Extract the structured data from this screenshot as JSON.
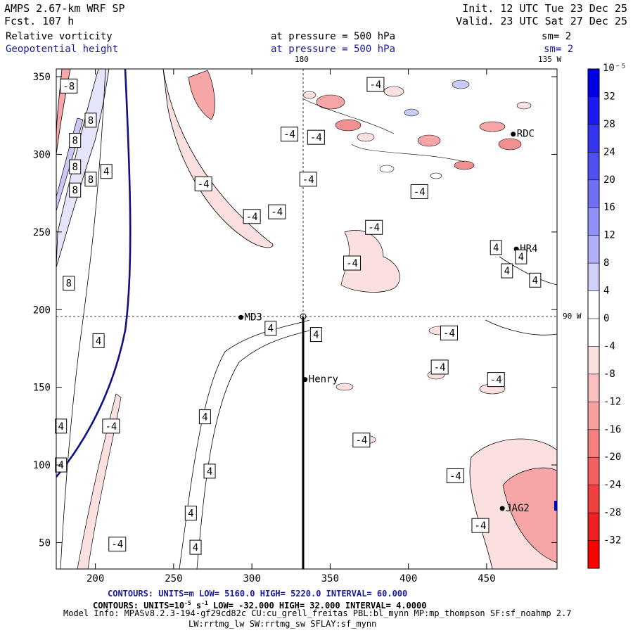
{
  "header": {
    "model": "AMPS 2.67-km WRF SP",
    "fcst": "Fcst.  107 h",
    "init": "Init. 12 UTC Tue 23 Dec 25",
    "valid": "Valid. 23 UTC Sat 27 Dec 25",
    "field1": "Relative vorticity",
    "field1_level": "at pressure =  500 hPa",
    "field1_sm": "sm= 2",
    "field2": "Geopotential height",
    "field2_level": "at pressure =  500 hPa",
    "field2_sm": "sm= 2",
    "top_label_180": "180",
    "top_label_135": "135 W",
    "right_label_90": "90 W"
  },
  "footer": {
    "line1": "CONTOURS:  UNITS=m  LOW=  5160.0      HIGH=  5220.0      INTERVAL=   60.000",
    "line2_a": "CONTOURS:  UNITS=10",
    "line2_sup": "-5",
    "line2_b": " s",
    "line2_sup2": "-1",
    "line2_c": "  LOW=  -32.000       HIGH=  32.000       INTERVAL=   4.0000",
    "line3": "Model Info: MPASv8.2.3-194-gf29cd82c CU:cu_grell_freitas PBL:bl_mynn MP:mp_thompson SF:sf_noahmp 2.7",
    "line4": "LW:rrtmg_lw SW:rrtmg_sw SFLAY:sf_mynn"
  },
  "chart_data": {
    "type": "contour",
    "title": "Relative vorticity / Geopotential height at 500 hPa",
    "xlim": [
      175,
      495
    ],
    "ylim": [
      33,
      355
    ],
    "xticks": [
      200,
      250,
      300,
      350,
      400,
      450
    ],
    "yticks": [
      50,
      100,
      150,
      200,
      250,
      300,
      350
    ],
    "colorbar": {
      "unit_label": "10⁻⁵ s⁻¹",
      "ticks": [
        32,
        28,
        24,
        20,
        16,
        12,
        8,
        4,
        0,
        -4,
        -8,
        -12,
        -16,
        -20,
        -24,
        -28,
        -32
      ],
      "colors": [
        "#0000e6",
        "#1a1aee",
        "#3535f0",
        "#5050f2",
        "#7070f4",
        "#9090f6",
        "#b0b0f8",
        "#d0d0fb",
        "#ffffff",
        "#ffffff",
        "#fbe0e0",
        "#f8c0c0",
        "#f6a0a0",
        "#f48080",
        "#f26060",
        "#f04040",
        "#ee2020",
        "#ff0000"
      ]
    },
    "stations": [
      {
        "name": "Henry",
        "x": 334,
        "y": 155
      },
      {
        "name": "MD3",
        "x": 293,
        "y": 195
      },
      {
        "name": "HR4",
        "x": 469,
        "y": 239
      },
      {
        "name": "RDC",
        "x": 467,
        "y": 313
      },
      {
        "name": "JAG2",
        "x": 460,
        "y": 72
      }
    ],
    "contour_labels": [
      {
        "v": "-8",
        "x": 183,
        "y": 344
      },
      {
        "v": "8",
        "x": 197,
        "y": 322
      },
      {
        "v": "8",
        "x": 187,
        "y": 309
      },
      {
        "v": "8",
        "x": 187,
        "y": 292
      },
      {
        "v": "8",
        "x": 197,
        "y": 284
      },
      {
        "v": "4",
        "x": 207,
        "y": 289
      },
      {
        "v": "8",
        "x": 187,
        "y": 277
      },
      {
        "v": "8",
        "x": 183,
        "y": 217
      },
      {
        "v": "4",
        "x": 202,
        "y": 180
      },
      {
        "v": "4",
        "x": 178,
        "y": 125
      },
      {
        "v": "4",
        "x": 178,
        "y": 100
      },
      {
        "v": "-4",
        "x": 210,
        "y": 125
      },
      {
        "v": "-4",
        "x": 214,
        "y": 49
      },
      {
        "v": "4",
        "x": 270,
        "y": 131
      },
      {
        "v": "4",
        "x": 273,
        "y": 96
      },
      {
        "v": "4",
        "x": 261,
        "y": 69
      },
      {
        "v": "4",
        "x": 264,
        "y": 47
      },
      {
        "v": "4",
        "x": 312,
        "y": 188
      },
      {
        "v": "4",
        "x": 341,
        "y": 184
      },
      {
        "v": "-4",
        "x": 269,
        "y": 281
      },
      {
        "v": "-4",
        "x": 300,
        "y": 260
      },
      {
        "v": "-4",
        "x": 316,
        "y": 263
      },
      {
        "v": "-4",
        "x": 336,
        "y": 284
      },
      {
        "v": "-4",
        "x": 324,
        "y": 313
      },
      {
        "v": "-4",
        "x": 341,
        "y": 311
      },
      {
        "v": "-4",
        "x": 379,
        "y": 345
      },
      {
        "v": "-4",
        "x": 407,
        "y": 276
      },
      {
        "v": "-4",
        "x": 378,
        "y": 253
      },
      {
        "v": "-4",
        "x": 364,
        "y": 230
      },
      {
        "v": "-4",
        "x": 426,
        "y": 185
      },
      {
        "v": "-4",
        "x": 420,
        "y": 163
      },
      {
        "v": "-4",
        "x": 456,
        "y": 155
      },
      {
        "v": "-4",
        "x": 370,
        "y": 116
      },
      {
        "v": "-4",
        "x": 430,
        "y": 93
      },
      {
        "v": "-4",
        "x": 446,
        "y": 61
      },
      {
        "v": "4",
        "x": 456,
        "y": 240
      },
      {
        "v": "4",
        "x": 472,
        "y": 234
      },
      {
        "v": "4",
        "x": 463,
        "y": 225
      },
      {
        "v": "4",
        "x": 481,
        "y": 219
      }
    ],
    "height_contour": {
      "value_m": 5160,
      "note": "single 500 hPa height line near x=185-220"
    },
    "cross_lines": {
      "x": 334,
      "y": 195
    }
  }
}
